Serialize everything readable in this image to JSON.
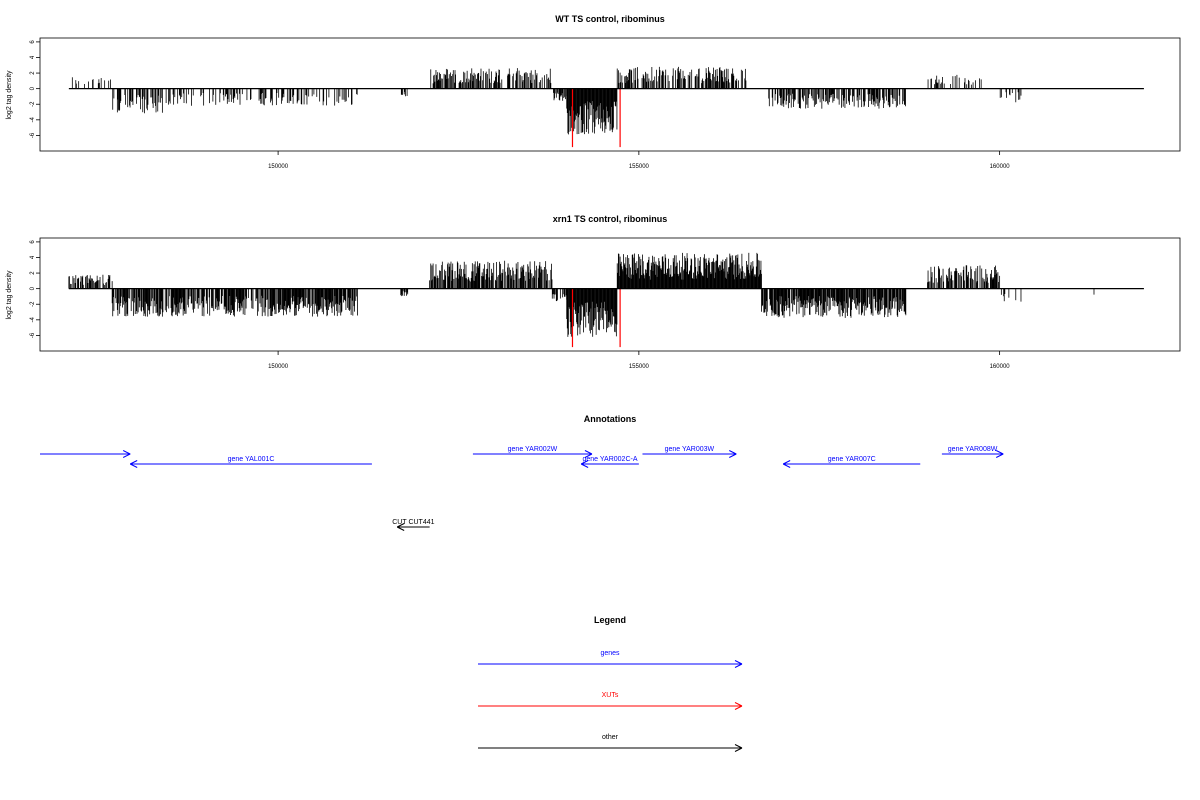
{
  "colors": {
    "track": "#000000",
    "highlight": "#ff0000",
    "genes": "#0000ff",
    "xuts": "#ff0000",
    "other": "#000000"
  },
  "chart_data": [
    {
      "type": "bar",
      "title": "WT TS control, ribominus",
      "ylabel": "log2 tag density",
      "xlabel": "",
      "xlim": [
        146700,
        162500
      ],
      "ylim": [
        -8,
        6.5
      ],
      "yticks": [
        6,
        4,
        2,
        0,
        -2,
        -4,
        -6
      ],
      "xticks": [
        150000,
        155000,
        160000
      ],
      "grid": false,
      "segments": [
        {
          "x0": 147100,
          "x1": 147700,
          "sign": 1,
          "amp": 1.6,
          "density": 0.25
        },
        {
          "x0": 147700,
          "x1": 148400,
          "sign": -1,
          "amp": 3.2,
          "density": 0.5
        },
        {
          "x0": 148400,
          "x1": 151100,
          "sign": -1,
          "amp": 2.2,
          "density": 0.35
        },
        {
          "x0": 151700,
          "x1": 151800,
          "sign": -1,
          "amp": 1.0,
          "density": 0.5
        },
        {
          "x0": 152100,
          "x1": 153800,
          "sign": 1,
          "amp": 2.7,
          "density": 0.55
        },
        {
          "x0": 153800,
          "x1": 154000,
          "sign": -1,
          "amp": 1.6,
          "density": 0.6
        },
        {
          "x0": 154000,
          "x1": 154700,
          "sign": -1,
          "amp": 6.0,
          "density": 1.0
        },
        {
          "x0": 154700,
          "x1": 156500,
          "sign": 1,
          "amp": 2.8,
          "density": 0.6
        },
        {
          "x0": 156800,
          "x1": 158700,
          "sign": -1,
          "amp": 2.6,
          "density": 0.6
        },
        {
          "x0": 159000,
          "x1": 159800,
          "sign": 1,
          "amp": 1.8,
          "density": 0.3
        },
        {
          "x0": 160000,
          "x1": 160300,
          "sign": -1,
          "amp": 1.8,
          "density": 0.3
        }
      ],
      "highlight_bars": [
        {
          "x": 154080,
          "y": -7.5
        },
        {
          "x": 154740,
          "y": -7.5
        }
      ]
    },
    {
      "type": "bar",
      "title": "xrn1 TS control, ribominus",
      "ylabel": "log2 tag density",
      "xlabel": "",
      "xlim": [
        146700,
        162500
      ],
      "ylim": [
        -8,
        6.5
      ],
      "yticks": [
        6,
        4,
        2,
        0,
        -2,
        -4,
        -6
      ],
      "xticks": [
        150000,
        155000,
        160000
      ],
      "grid": false,
      "segments": [
        {
          "x0": 147100,
          "x1": 147700,
          "sign": 1,
          "amp": 1.8,
          "density": 0.6
        },
        {
          "x0": 147700,
          "x1": 151100,
          "sign": -1,
          "amp": 3.6,
          "density": 0.8
        },
        {
          "x0": 151700,
          "x1": 151800,
          "sign": -1,
          "amp": 1.0,
          "density": 0.5
        },
        {
          "x0": 152100,
          "x1": 153800,
          "sign": 1,
          "amp": 3.6,
          "density": 0.75
        },
        {
          "x0": 153800,
          "x1": 154000,
          "sign": -1,
          "amp": 1.6,
          "density": 0.6
        },
        {
          "x0": 154000,
          "x1": 154700,
          "sign": -1,
          "amp": 6.2,
          "density": 1.0
        },
        {
          "x0": 154700,
          "x1": 156700,
          "sign": 1,
          "amp": 4.6,
          "density": 1.0
        },
        {
          "x0": 156700,
          "x1": 158700,
          "sign": -1,
          "amp": 3.8,
          "density": 0.85
        },
        {
          "x0": 159000,
          "x1": 160000,
          "sign": 1,
          "amp": 3.0,
          "density": 0.6
        },
        {
          "x0": 160000,
          "x1": 160300,
          "sign": -1,
          "amp": 1.8,
          "density": 0.3
        },
        {
          "x0": 161300,
          "x1": 161350,
          "sign": -1,
          "amp": 1.2,
          "density": 0.5
        }
      ],
      "highlight_bars": [
        {
          "x": 154080,
          "y": -7.5
        },
        {
          "x": 154740,
          "y": -7.5
        }
      ]
    }
  ],
  "annotations": {
    "title": "Annotations",
    "features": [
      {
        "label": "",
        "start": 146700,
        "end": 147950,
        "strand": "+",
        "row": 0,
        "kind": "genes"
      },
      {
        "label": "gene YAL001C",
        "start": 147950,
        "end": 151300,
        "strand": "-",
        "row": 1,
        "kind": "genes"
      },
      {
        "label": "gene YAR002W",
        "start": 152700,
        "end": 154350,
        "strand": "+",
        "row": 0,
        "kind": "genes"
      },
      {
        "label": "gene YAR002C-A",
        "start": 154200,
        "end": 155000,
        "strand": "-",
        "row": 1,
        "kind": "genes"
      },
      {
        "label": "gene YAR003W",
        "start": 155050,
        "end": 156350,
        "strand": "+",
        "row": 0,
        "kind": "genes"
      },
      {
        "label": "gene YAR007C",
        "start": 157000,
        "end": 158900,
        "strand": "-",
        "row": 1,
        "kind": "genes"
      },
      {
        "label": "gene YAR008W",
        "start": 159200,
        "end": 160050,
        "strand": "+",
        "row": 0,
        "kind": "genes"
      },
      {
        "label": "CUT CUT441",
        "start": 151650,
        "end": 152100,
        "strand": "-",
        "row": 2,
        "kind": "other"
      }
    ]
  },
  "legend": {
    "title": "Legend",
    "entries": [
      {
        "label": "genes",
        "kind": "genes"
      },
      {
        "label": "XUTs",
        "kind": "xuts"
      },
      {
        "label": "other",
        "kind": "other"
      }
    ]
  }
}
